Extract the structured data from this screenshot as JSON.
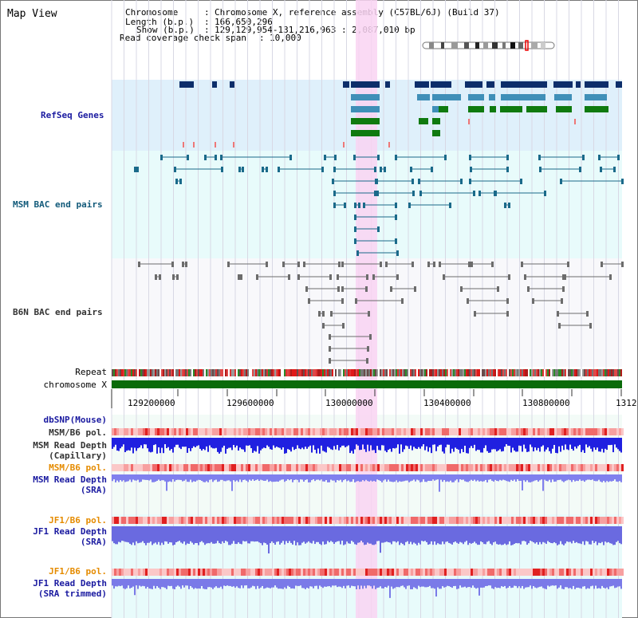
{
  "page": {
    "title": "Map View"
  },
  "header": {
    "chromosome_label": "Chromosome",
    "chromosome_value": "Chromosome X, reference assembly (C57BL/6J) (Build 37)",
    "length_label": "Length (b.p.)",
    "length_value": "166,650,296",
    "show_label": "Show (b.p.)",
    "show_value": "129,129,954-131,216,963 : 2,087,010 bp",
    "coverage_label": "Read coverage check span",
    "coverage_value": "10,000"
  },
  "tracks": {
    "refseq": "RefSeq Genes",
    "msm_bac": "MSM BAC end pairs",
    "b6n_bac": "B6N BAC end pairs",
    "repeat": "Repeat",
    "chromosome": "chromosome X",
    "dbsnp": "dbSNP(Mouse)",
    "msm_b6_pol_1": "MSM/B6 pol.",
    "msm_depth_cap_1": "MSM Read Depth",
    "msm_depth_cap_2": "(Capillary)",
    "msm_b6_pol_2": "MSM/B6 pol.",
    "msm_depth_sra_1": "MSM Read Depth",
    "msm_depth_sra_2": "(SRA)",
    "jf1_b6_pol_1": "JF1/B6 pol.",
    "jf1_depth_sra_1": "JF1 Read Depth",
    "jf1_depth_sra_2": "(SRA)",
    "jf1_b6_pol_2": "JF1/B6 pol.",
    "jf1_depth_trim_1": "JF1 Read Depth",
    "jf1_depth_trim_2": "(SRA trimmed)"
  },
  "axis": {
    "ticks": [
      "129200000",
      "129600000",
      "130000000",
      "130400000",
      "130800000",
      "1312"
    ]
  },
  "colors": {
    "refseq_bg": "#dff0fb",
    "msm_bg": "#e8fbfb",
    "b6n_bg": "#f7f7fb",
    "highlight": "#f9d4f2",
    "gene_dark": "#0d2e6a",
    "gene_mid": "#3f8fb8",
    "gene_green": "#0f7a0f",
    "chrom": "#0a6b0a"
  }
}
